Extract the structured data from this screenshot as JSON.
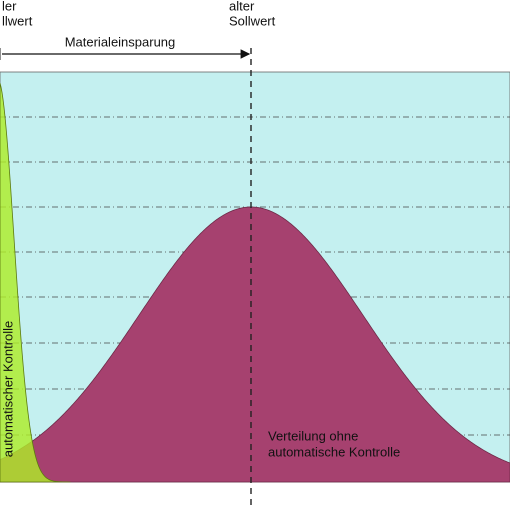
{
  "labels": {
    "new_setpoint": [
      "ler",
      "llwert"
    ],
    "old_setpoint": [
      "alter",
      "Sollwert"
    ],
    "saving": "Materialeinsparung",
    "with_control": "automatischer Kontrolle",
    "without_control": [
      "Verteilung ohne",
      "automatische Kontrolle"
    ]
  }
}
